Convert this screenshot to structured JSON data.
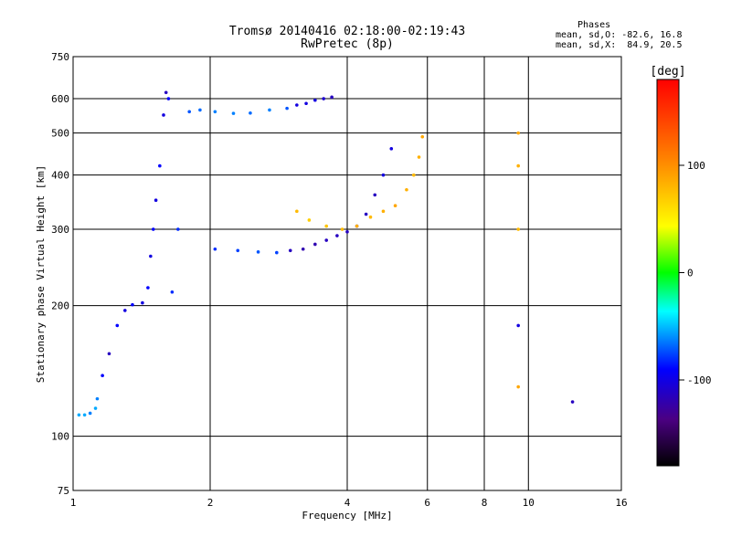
{
  "chart_data": {
    "type": "scatter",
    "title": "Tromsø 20140416 02:18:00-02:19:43",
    "subtitle": "RwPretec (8p)",
    "xlabel": "Frequency [MHz]",
    "ylabel": "Stationary phase Virtual Height [km]",
    "x_scale": "log",
    "y_scale": "log",
    "xlim": [
      1,
      16
    ],
    "ylim": [
      75,
      750
    ],
    "xticks": [
      "1",
      "2",
      "4",
      "6",
      "8",
      "10",
      "16"
    ],
    "yticks": [
      "75",
      "100",
      "200",
      "300",
      "400",
      "500",
      "600",
      "750"
    ],
    "grid": true,
    "phases_label": "Phases",
    "phase_stats_o": "mean, sd,O: -82.6, 16.8",
    "phase_stats_x": "mean, sd,X:  84.9, 20.5",
    "colorbar": {
      "label": "[deg]",
      "range": [
        -180,
        180
      ],
      "ticks": [
        "100",
        "0",
        "-100"
      ],
      "tick_values": [
        100,
        0,
        -100
      ]
    },
    "series": [
      {
        "points": [
          {
            "x": 1.03,
            "y": 112,
            "p": -60
          },
          {
            "x": 1.06,
            "y": 112,
            "p": -60
          },
          {
            "x": 1.09,
            "y": 113,
            "p": -70
          },
          {
            "x": 1.12,
            "y": 116,
            "p": -60
          },
          {
            "x": 1.13,
            "y": 122,
            "p": -70
          },
          {
            "x": 1.16,
            "y": 138,
            "p": -100
          },
          {
            "x": 1.2,
            "y": 155,
            "p": -120
          },
          {
            "x": 1.25,
            "y": 180,
            "p": -100
          },
          {
            "x": 1.3,
            "y": 195,
            "p": -110
          },
          {
            "x": 1.35,
            "y": 201,
            "p": -100
          },
          {
            "x": 1.42,
            "y": 203,
            "p": -110
          },
          {
            "x": 1.46,
            "y": 220,
            "p": -100
          },
          {
            "x": 1.48,
            "y": 260,
            "p": -110
          },
          {
            "x": 1.5,
            "y": 300,
            "p": -100
          },
          {
            "x": 1.52,
            "y": 350,
            "p": -110
          },
          {
            "x": 1.55,
            "y": 420,
            "p": -100
          },
          {
            "x": 1.58,
            "y": 550,
            "p": -110
          },
          {
            "x": 1.6,
            "y": 620,
            "p": -120
          },
          {
            "x": 1.62,
            "y": 600,
            "p": -100
          },
          {
            "x": 1.65,
            "y": 215,
            "p": -90
          },
          {
            "x": 1.7,
            "y": 300,
            "p": -90
          },
          {
            "x": 1.8,
            "y": 560,
            "p": -80
          },
          {
            "x": 1.9,
            "y": 565,
            "p": -75
          },
          {
            "x": 2.05,
            "y": 560,
            "p": -70
          },
          {
            "x": 2.25,
            "y": 555,
            "p": -70
          },
          {
            "x": 2.45,
            "y": 556,
            "p": -75
          },
          {
            "x": 2.7,
            "y": 565,
            "p": -70
          },
          {
            "x": 2.95,
            "y": 570,
            "p": -80
          },
          {
            "x": 3.1,
            "y": 580,
            "p": -110
          },
          {
            "x": 3.25,
            "y": 585,
            "p": -110
          },
          {
            "x": 3.4,
            "y": 595,
            "p": -110
          },
          {
            "x": 3.55,
            "y": 600,
            "p": -115
          },
          {
            "x": 3.7,
            "y": 605,
            "p": -120
          },
          {
            "x": 2.05,
            "y": 270,
            "p": -90
          },
          {
            "x": 2.3,
            "y": 268,
            "p": -85
          },
          {
            "x": 2.55,
            "y": 266,
            "p": -80
          },
          {
            "x": 2.8,
            "y": 265,
            "p": -85
          },
          {
            "x": 3.0,
            "y": 268,
            "p": -120
          },
          {
            "x": 3.2,
            "y": 270,
            "p": -125
          },
          {
            "x": 3.4,
            "y": 277,
            "p": -125
          },
          {
            "x": 3.6,
            "y": 283,
            "p": -120
          },
          {
            "x": 3.8,
            "y": 290,
            "p": -120
          },
          {
            "x": 4.0,
            "y": 296,
            "p": -120
          },
          {
            "x": 4.2,
            "y": 305,
            "p": -115
          },
          {
            "x": 4.4,
            "y": 325,
            "p": -120
          },
          {
            "x": 4.6,
            "y": 360,
            "p": -120
          },
          {
            "x": 4.8,
            "y": 400,
            "p": -110
          },
          {
            "x": 5.0,
            "y": 460,
            "p": -110
          },
          {
            "x": 3.1,
            "y": 330,
            "p": 80
          },
          {
            "x": 3.3,
            "y": 315,
            "p": 70
          },
          {
            "x": 3.6,
            "y": 305,
            "p": 75
          },
          {
            "x": 3.9,
            "y": 300,
            "p": 80
          },
          {
            "x": 4.2,
            "y": 305,
            "p": 85
          },
          {
            "x": 4.5,
            "y": 320,
            "p": 80
          },
          {
            "x": 4.8,
            "y": 330,
            "p": 85
          },
          {
            "x": 5.1,
            "y": 340,
            "p": 90
          },
          {
            "x": 5.4,
            "y": 370,
            "p": 85
          },
          {
            "x": 5.6,
            "y": 400,
            "p": 80
          },
          {
            "x": 5.75,
            "y": 440,
            "p": 85
          },
          {
            "x": 5.85,
            "y": 490,
            "p": 90
          },
          {
            "x": 9.5,
            "y": 500,
            "p": 90
          },
          {
            "x": 9.5,
            "y": 420,
            "p": 85
          },
          {
            "x": 9.5,
            "y": 300,
            "p": 80
          },
          {
            "x": 9.5,
            "y": 180,
            "p": -110
          },
          {
            "x": 9.5,
            "y": 130,
            "p": 90
          },
          {
            "x": 12.5,
            "y": 120,
            "p": -120
          }
        ]
      }
    ]
  }
}
